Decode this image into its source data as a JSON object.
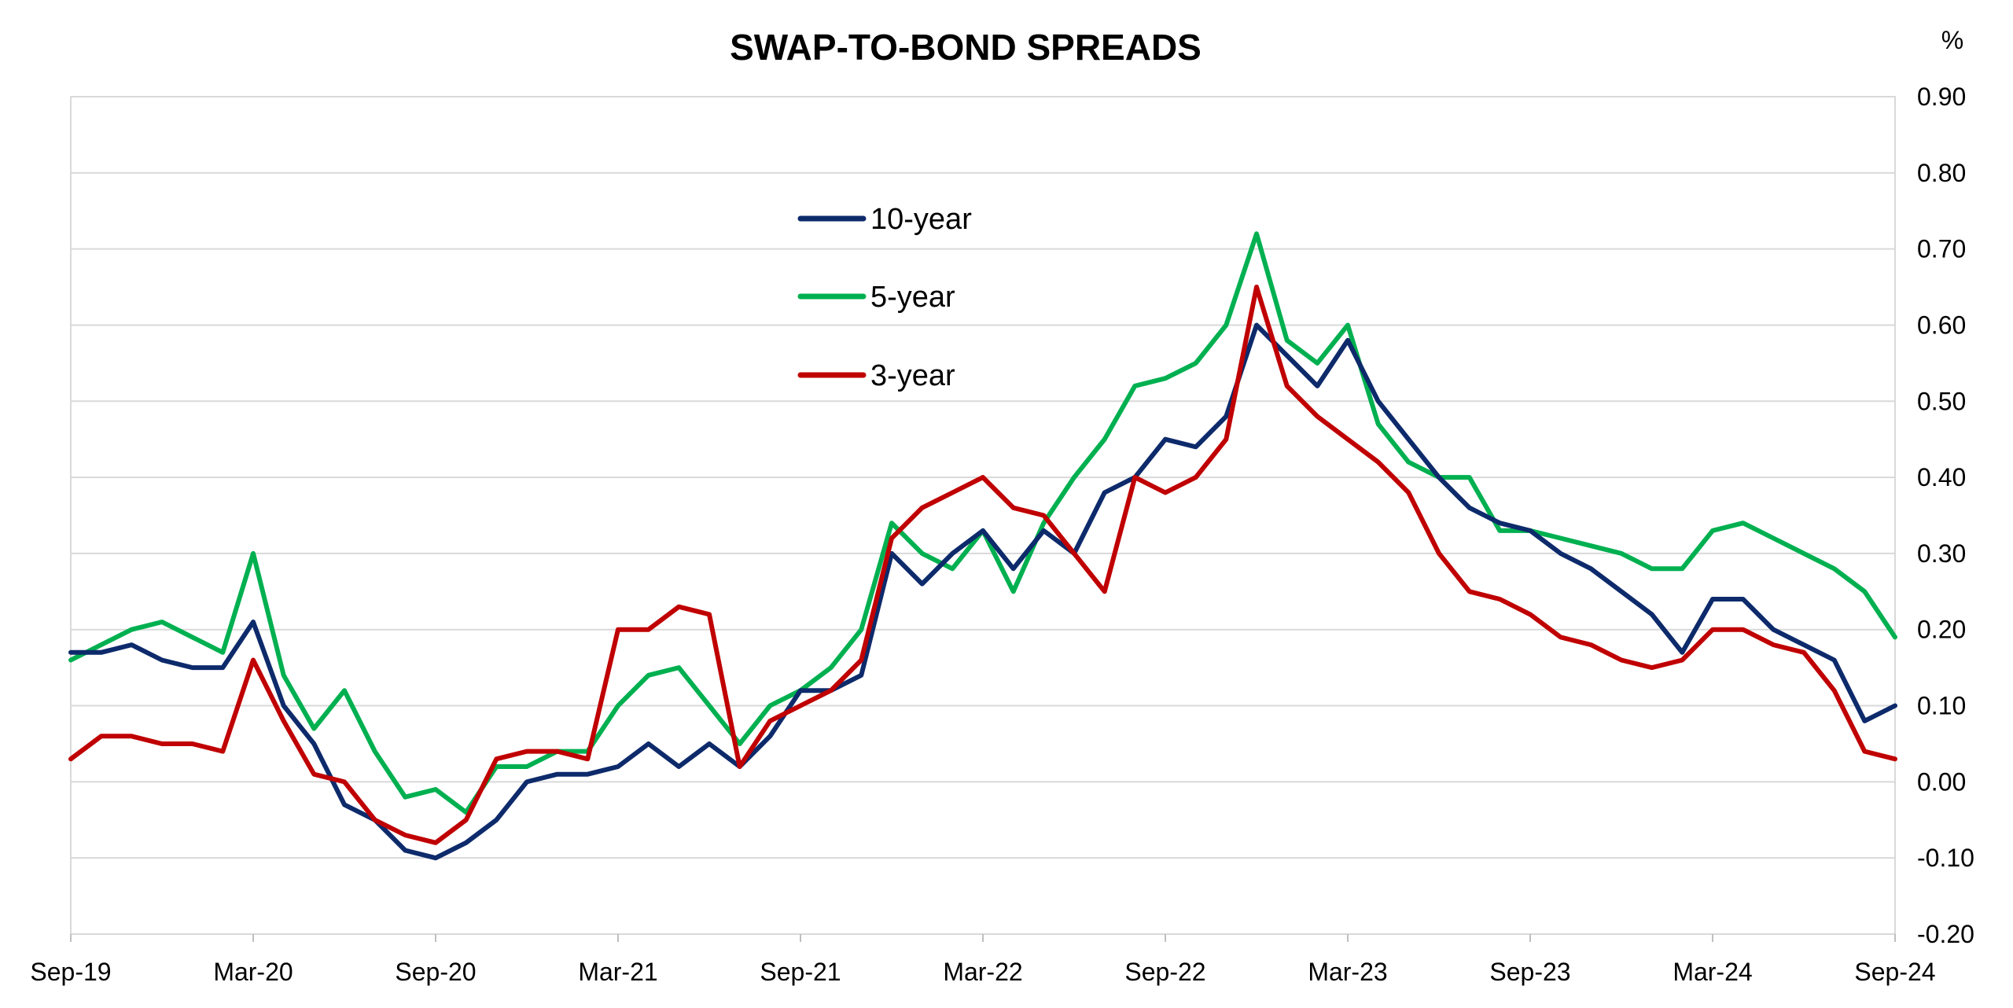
{
  "chart_data": {
    "type": "line",
    "title": "SWAP-TO-BOND SPREADS",
    "unit_label": "%",
    "xlabel": "",
    "ylabel": "",
    "x_ticks": [
      "Sep-19",
      "Mar-20",
      "Sep-20",
      "Mar-21",
      "Sep-21",
      "Mar-22",
      "Sep-22",
      "Mar-23",
      "Sep-23",
      "Mar-24",
      "Sep-24"
    ],
    "x_range": [
      "2019-09",
      "2024-09"
    ],
    "ylim": [
      -0.2,
      0.9
    ],
    "y_ticks": [
      "0.90",
      "0.80",
      "0.70",
      "0.60",
      "0.50",
      "0.40",
      "0.30",
      "0.20",
      "0.10",
      "0.00",
      "-0.10",
      "-0.20"
    ],
    "y_axis_position": "right",
    "grid": "horizontal",
    "legend_position": "top-center",
    "series": [
      {
        "name": "10-year",
        "color": "#0d2a6b",
        "x": [
          "2019-09",
          "2019-10",
          "2019-11",
          "2019-12",
          "2020-01",
          "2020-02",
          "2020-03",
          "2020-04",
          "2020-05",
          "2020-06",
          "2020-07",
          "2020-08",
          "2020-09",
          "2020-10",
          "2020-11",
          "2020-12",
          "2021-01",
          "2021-02",
          "2021-03",
          "2021-04",
          "2021-05",
          "2021-06",
          "2021-07",
          "2021-08",
          "2021-09",
          "2021-10",
          "2021-11",
          "2021-12",
          "2022-01",
          "2022-02",
          "2022-03",
          "2022-04",
          "2022-05",
          "2022-06",
          "2022-07",
          "2022-08",
          "2022-09",
          "2022-10",
          "2022-11",
          "2022-12",
          "2023-01",
          "2023-02",
          "2023-03",
          "2023-04",
          "2023-05",
          "2023-06",
          "2023-07",
          "2023-08",
          "2023-09",
          "2023-10",
          "2023-11",
          "2023-12",
          "2024-01",
          "2024-02",
          "2024-03",
          "2024-04",
          "2024-05",
          "2024-06",
          "2024-07",
          "2024-08",
          "2024-09"
        ],
        "y": [
          0.17,
          0.17,
          0.18,
          0.16,
          0.15,
          0.15,
          0.21,
          0.1,
          0.05,
          -0.03,
          -0.05,
          -0.09,
          -0.1,
          -0.08,
          -0.05,
          0.0,
          0.01,
          0.01,
          0.02,
          0.05,
          0.02,
          0.05,
          0.02,
          0.06,
          0.12,
          0.12,
          0.14,
          0.3,
          0.26,
          0.3,
          0.33,
          0.28,
          0.33,
          0.3,
          0.38,
          0.4,
          0.45,
          0.44,
          0.48,
          0.6,
          0.56,
          0.52,
          0.58,
          0.5,
          0.45,
          0.4,
          0.36,
          0.34,
          0.33,
          0.3,
          0.28,
          0.25,
          0.22,
          0.17,
          0.24,
          0.24,
          0.2,
          0.18,
          0.16,
          0.08,
          0.1
        ]
      },
      {
        "name": "5-year",
        "color": "#00b050",
        "x": [
          "2019-09",
          "2019-10",
          "2019-11",
          "2019-12",
          "2020-01",
          "2020-02",
          "2020-03",
          "2020-04",
          "2020-05",
          "2020-06",
          "2020-07",
          "2020-08",
          "2020-09",
          "2020-10",
          "2020-11",
          "2020-12",
          "2021-01",
          "2021-02",
          "2021-03",
          "2021-04",
          "2021-05",
          "2021-06",
          "2021-07",
          "2021-08",
          "2021-09",
          "2021-10",
          "2021-11",
          "2021-12",
          "2022-01",
          "2022-02",
          "2022-03",
          "2022-04",
          "2022-05",
          "2022-06",
          "2022-07",
          "2022-08",
          "2022-09",
          "2022-10",
          "2022-11",
          "2022-12",
          "2023-01",
          "2023-02",
          "2023-03",
          "2023-04",
          "2023-05",
          "2023-06",
          "2023-07",
          "2023-08",
          "2023-09",
          "2023-10",
          "2023-11",
          "2023-12",
          "2024-01",
          "2024-02",
          "2024-03",
          "2024-04",
          "2024-05",
          "2024-06",
          "2024-07",
          "2024-08",
          "2024-09"
        ],
        "y": [
          0.16,
          0.18,
          0.2,
          0.21,
          0.19,
          0.17,
          0.3,
          0.14,
          0.07,
          0.12,
          0.04,
          -0.02,
          -0.01,
          -0.04,
          0.02,
          0.02,
          0.04,
          0.04,
          0.1,
          0.14,
          0.15,
          0.1,
          0.05,
          0.1,
          0.12,
          0.15,
          0.2,
          0.34,
          0.3,
          0.28,
          0.33,
          0.25,
          0.34,
          0.4,
          0.45,
          0.52,
          0.53,
          0.55,
          0.6,
          0.72,
          0.58,
          0.55,
          0.6,
          0.47,
          0.42,
          0.4,
          0.4,
          0.33,
          0.33,
          0.32,
          0.31,
          0.3,
          0.28,
          0.28,
          0.33,
          0.34,
          0.32,
          0.3,
          0.28,
          0.25,
          0.19
        ]
      },
      {
        "name": "3-year",
        "color": "#c00000",
        "x": [
          "2019-09",
          "2019-10",
          "2019-11",
          "2019-12",
          "2020-01",
          "2020-02",
          "2020-03",
          "2020-04",
          "2020-05",
          "2020-06",
          "2020-07",
          "2020-08",
          "2020-09",
          "2020-10",
          "2020-11",
          "2020-12",
          "2021-01",
          "2021-02",
          "2021-03",
          "2021-04",
          "2021-05",
          "2021-06",
          "2021-07",
          "2021-08",
          "2021-09",
          "2021-10",
          "2021-11",
          "2021-12",
          "2022-01",
          "2022-02",
          "2022-03",
          "2022-04",
          "2022-05",
          "2022-06",
          "2022-07",
          "2022-08",
          "2022-09",
          "2022-10",
          "2022-11",
          "2022-12",
          "2023-01",
          "2023-02",
          "2023-03",
          "2023-04",
          "2023-05",
          "2023-06",
          "2023-07",
          "2023-08",
          "2023-09",
          "2023-10",
          "2023-11",
          "2023-12",
          "2024-01",
          "2024-02",
          "2024-03",
          "2024-04",
          "2024-05",
          "2024-06",
          "2024-07",
          "2024-08",
          "2024-09"
        ],
        "y": [
          0.03,
          0.06,
          0.06,
          0.05,
          0.05,
          0.04,
          0.16,
          0.08,
          0.01,
          0.0,
          -0.05,
          -0.07,
          -0.08,
          -0.05,
          0.03,
          0.04,
          0.04,
          0.03,
          0.2,
          0.2,
          0.23,
          0.22,
          0.02,
          0.08,
          0.1,
          0.12,
          0.16,
          0.32,
          0.36,
          0.38,
          0.4,
          0.36,
          0.35,
          0.3,
          0.25,
          0.4,
          0.38,
          0.4,
          0.45,
          0.65,
          0.52,
          0.48,
          0.45,
          0.42,
          0.38,
          0.3,
          0.25,
          0.24,
          0.22,
          0.19,
          0.18,
          0.16,
          0.15,
          0.16,
          0.2,
          0.2,
          0.18,
          0.17,
          0.12,
          0.04,
          0.03
        ]
      }
    ]
  }
}
